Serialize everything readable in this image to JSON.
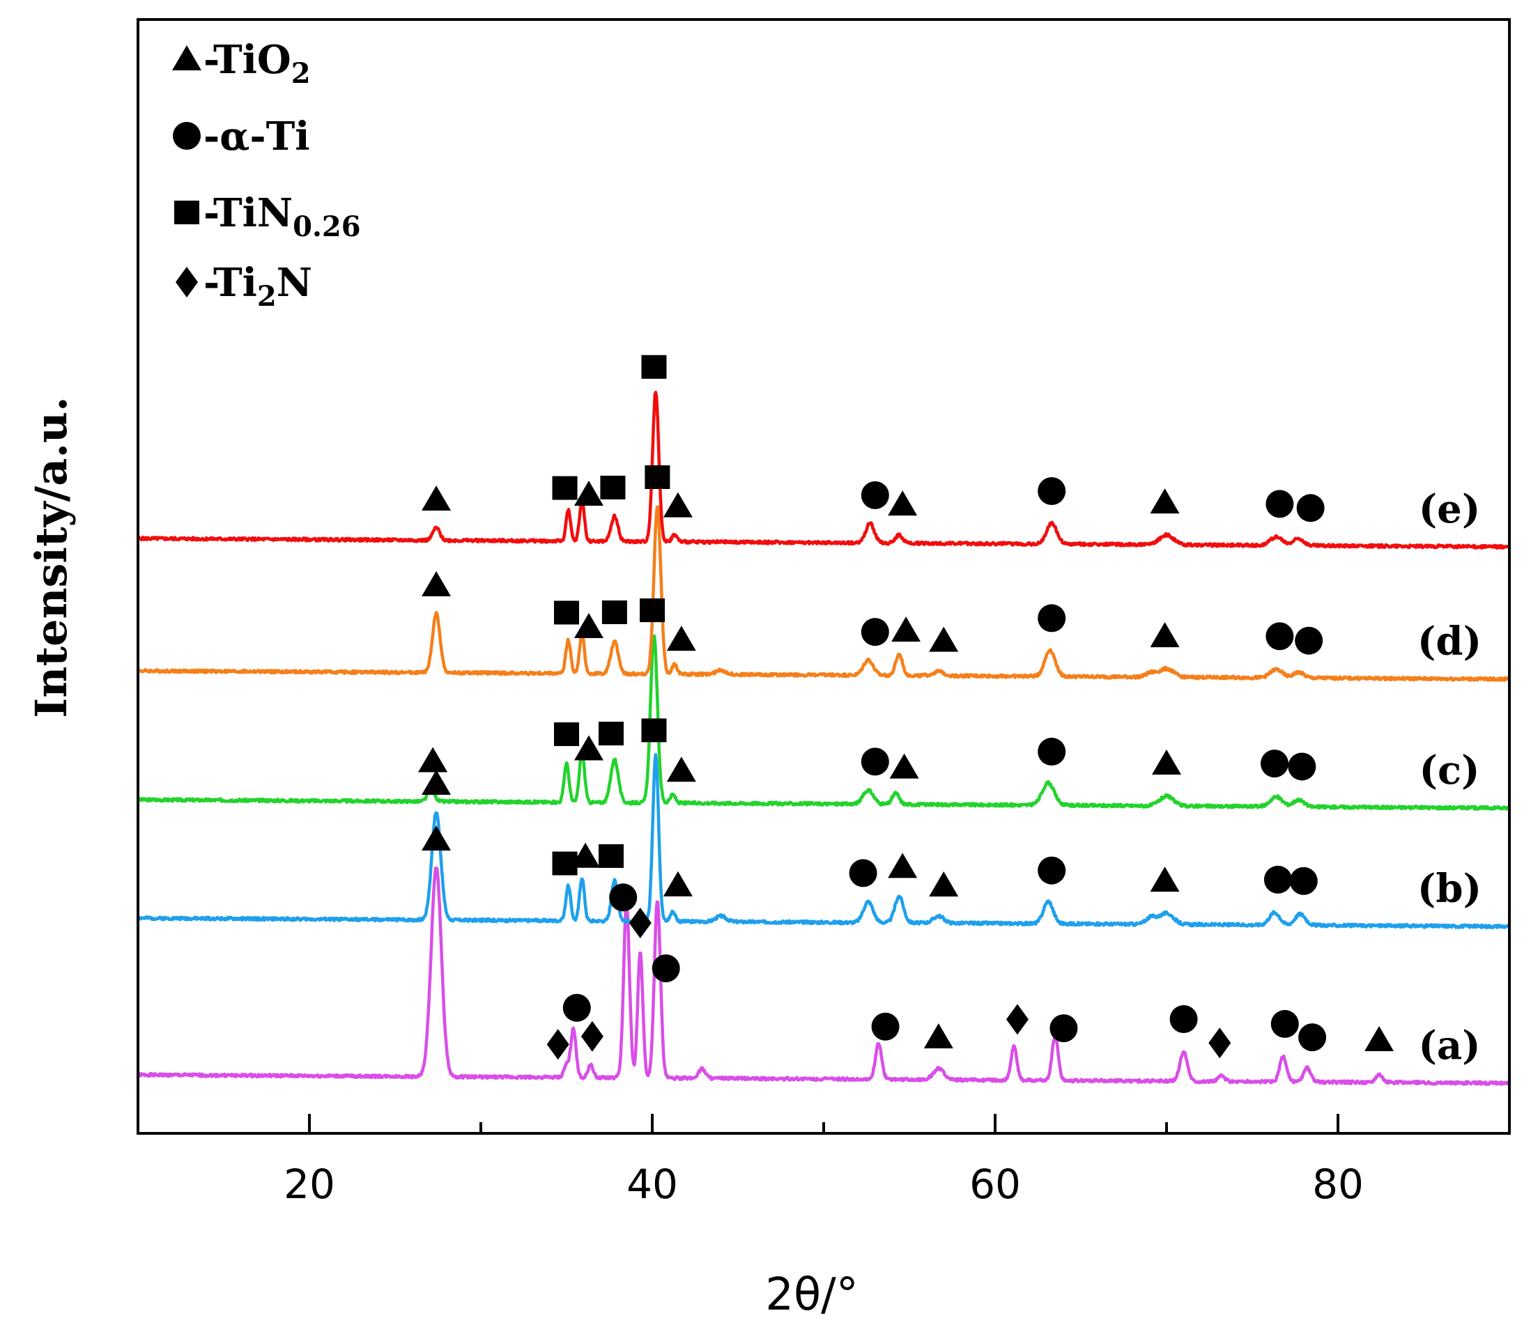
{
  "chart_data": {
    "type": "line",
    "title": "",
    "xlabel": "2θ/°",
    "ylabel": "Intensity/a.u.",
    "xlim": [
      10,
      90
    ],
    "x_ticks": [
      20,
      40,
      60,
      80
    ],
    "x_tick_labels": [
      "20",
      "40",
      "60",
      "80"
    ],
    "y_ticks_shown": false,
    "grid": false,
    "legend_position": "top-left",
    "legend": [
      {
        "symbol": "triangle",
        "label": "-TiO",
        "sub": "2"
      },
      {
        "symbol": "circle",
        "label": "-α-Ti",
        "sub": ""
      },
      {
        "symbol": "square",
        "label": "-TiN",
        "sub": "0.26"
      },
      {
        "symbol": "diamond",
        "label": "-Ti",
        "sub": "2",
        "tail": "N"
      }
    ],
    "series": [
      {
        "label": "(a)",
        "color": "#d94ee8",
        "offset": 0,
        "noise_seed": 1,
        "peaks": [
          [
            27.4,
            300,
            0.3
          ],
          [
            35.0,
            18,
            0.15
          ],
          [
            35.4,
            70,
            0.15
          ],
          [
            36.4,
            18,
            0.15
          ],
          [
            38.5,
            250,
            0.17
          ],
          [
            39.3,
            180,
            0.15
          ],
          [
            40.3,
            255,
            0.18
          ],
          [
            42.9,
            14,
            0.2
          ],
          [
            53.2,
            52,
            0.18
          ],
          [
            56.7,
            16,
            0.3
          ],
          [
            61.1,
            48,
            0.17
          ],
          [
            63.5,
            64,
            0.18
          ],
          [
            71.0,
            42,
            0.22
          ],
          [
            73.2,
            8,
            0.2
          ],
          [
            76.8,
            36,
            0.2
          ],
          [
            78.2,
            20,
            0.2
          ],
          [
            82.4,
            12,
            0.2
          ]
        ]
      },
      {
        "label": "(b)",
        "color": "#1ea0ec",
        "offset": 225,
        "noise_seed": 2,
        "peaks": [
          [
            27.4,
            155,
            0.26
          ],
          [
            35.1,
            50,
            0.14
          ],
          [
            35.9,
            62,
            0.14
          ],
          [
            37.8,
            58,
            0.18
          ],
          [
            40.2,
            240,
            0.17
          ],
          [
            41.2,
            14,
            0.15
          ],
          [
            44.0,
            8,
            0.3
          ],
          [
            52.6,
            30,
            0.28
          ],
          [
            54.4,
            38,
            0.25
          ],
          [
            56.7,
            10,
            0.3
          ],
          [
            63.1,
            32,
            0.28
          ],
          [
            69.1,
            10,
            0.3
          ],
          [
            70.0,
            16,
            0.4
          ],
          [
            76.3,
            18,
            0.3
          ],
          [
            77.8,
            16,
            0.3
          ]
        ]
      },
      {
        "label": "(c)",
        "color": "#22d32c",
        "offset": 395,
        "noise_seed": 3,
        "peaks": [
          [
            27.1,
            18,
            0.2
          ],
          [
            35.0,
            56,
            0.14
          ],
          [
            35.9,
            72,
            0.15
          ],
          [
            37.8,
            62,
            0.22
          ],
          [
            40.1,
            240,
            0.2
          ],
          [
            41.2,
            12,
            0.15
          ],
          [
            52.6,
            20,
            0.3
          ],
          [
            54.2,
            16,
            0.2
          ],
          [
            63.1,
            32,
            0.35
          ],
          [
            70.0,
            14,
            0.4
          ],
          [
            76.4,
            14,
            0.35
          ],
          [
            77.7,
            10,
            0.3
          ]
        ]
      },
      {
        "label": "(d)",
        "color": "#f57f1a",
        "offset": 580,
        "noise_seed": 4,
        "peaks": [
          [
            27.4,
            85,
            0.22
          ],
          [
            35.1,
            48,
            0.14
          ],
          [
            35.9,
            58,
            0.14
          ],
          [
            37.8,
            46,
            0.22
          ],
          [
            40.3,
            240,
            0.2
          ],
          [
            41.3,
            14,
            0.15
          ],
          [
            44.0,
            6,
            0.3
          ],
          [
            52.6,
            22,
            0.28
          ],
          [
            54.4,
            30,
            0.2
          ],
          [
            56.7,
            6,
            0.3
          ],
          [
            63.2,
            38,
            0.3
          ],
          [
            69.1,
            6,
            0.3
          ],
          [
            70.0,
            12,
            0.4
          ],
          [
            76.4,
            12,
            0.35
          ],
          [
            77.7,
            8,
            0.3
          ]
        ]
      },
      {
        "label": "(e)",
        "color": "#f20d0d",
        "offset": 770,
        "noise_seed": 5,
        "peaks": [
          [
            27.4,
            18,
            0.2
          ],
          [
            35.1,
            44,
            0.13
          ],
          [
            35.9,
            58,
            0.14
          ],
          [
            37.8,
            36,
            0.2
          ],
          [
            40.2,
            215,
            0.18
          ],
          [
            41.3,
            10,
            0.15
          ],
          [
            52.7,
            28,
            0.25
          ],
          [
            54.4,
            12,
            0.2
          ],
          [
            63.3,
            30,
            0.3
          ],
          [
            70.0,
            14,
            0.4
          ],
          [
            76.4,
            12,
            0.35
          ],
          [
            77.7,
            10,
            0.3
          ]
        ]
      }
    ],
    "peak_markers": [
      {
        "series": "(a)",
        "marks": [
          [
            27.4,
            "triangle"
          ],
          [
            34.5,
            "diamond"
          ],
          [
            35.6,
            "circle"
          ],
          [
            36.5,
            "diamond"
          ],
          [
            38.3,
            "circle"
          ],
          [
            39.3,
            "diamond"
          ],
          [
            40.8,
            "circle"
          ],
          [
            53.6,
            "circle"
          ],
          [
            56.7,
            "triangle"
          ],
          [
            61.3,
            "diamond"
          ],
          [
            64.0,
            "circle"
          ],
          [
            71.0,
            "circle"
          ],
          [
            73.1,
            "diamond"
          ],
          [
            76.9,
            "circle"
          ],
          [
            78.5,
            "circle"
          ],
          [
            82.4,
            "triangle"
          ]
        ]
      },
      {
        "series": "(b)",
        "marks": [
          [
            27.4,
            "triangle"
          ],
          [
            34.9,
            "square"
          ],
          [
            36.1,
            "triangle"
          ],
          [
            37.6,
            "square"
          ],
          [
            40.1,
            "square"
          ],
          [
            41.5,
            "triangle"
          ],
          [
            52.3,
            "circle"
          ],
          [
            54.6,
            "triangle"
          ],
          [
            57.0,
            "triangle"
          ],
          [
            63.3,
            "circle"
          ],
          [
            69.9,
            "triangle"
          ],
          [
            76.5,
            "circle"
          ],
          [
            78.0,
            "circle"
          ]
        ]
      },
      {
        "series": "(c)",
        "marks": [
          [
            27.2,
            "triangle"
          ],
          [
            35.0,
            "square"
          ],
          [
            36.3,
            "triangle"
          ],
          [
            37.6,
            "square"
          ],
          [
            40.0,
            "square"
          ],
          [
            41.7,
            "triangle"
          ],
          [
            53.0,
            "circle"
          ],
          [
            54.7,
            "triangle"
          ],
          [
            63.3,
            "circle"
          ],
          [
            70.0,
            "triangle"
          ],
          [
            76.3,
            "circle"
          ],
          [
            77.9,
            "circle"
          ]
        ]
      },
      {
        "series": "(d)",
        "marks": [
          [
            27.4,
            "triangle"
          ],
          [
            35.0,
            "square"
          ],
          [
            36.3,
            "triangle"
          ],
          [
            37.8,
            "square"
          ],
          [
            40.3,
            "square"
          ],
          [
            41.7,
            "triangle"
          ],
          [
            53.0,
            "circle"
          ],
          [
            54.8,
            "triangle"
          ],
          [
            57.0,
            "triangle"
          ],
          [
            63.3,
            "circle"
          ],
          [
            69.9,
            "triangle"
          ],
          [
            76.6,
            "circle"
          ],
          [
            78.3,
            "circle"
          ]
        ]
      },
      {
        "series": "(e)",
        "marks": [
          [
            27.4,
            "triangle"
          ],
          [
            34.9,
            "square"
          ],
          [
            36.3,
            "triangle"
          ],
          [
            37.7,
            "square"
          ],
          [
            40.1,
            "square"
          ],
          [
            41.5,
            "triangle"
          ],
          [
            53.0,
            "circle"
          ],
          [
            54.6,
            "triangle"
          ],
          [
            63.3,
            "circle"
          ],
          [
            69.9,
            "triangle"
          ],
          [
            76.6,
            "circle"
          ],
          [
            78.4,
            "circle"
          ]
        ]
      }
    ]
  }
}
